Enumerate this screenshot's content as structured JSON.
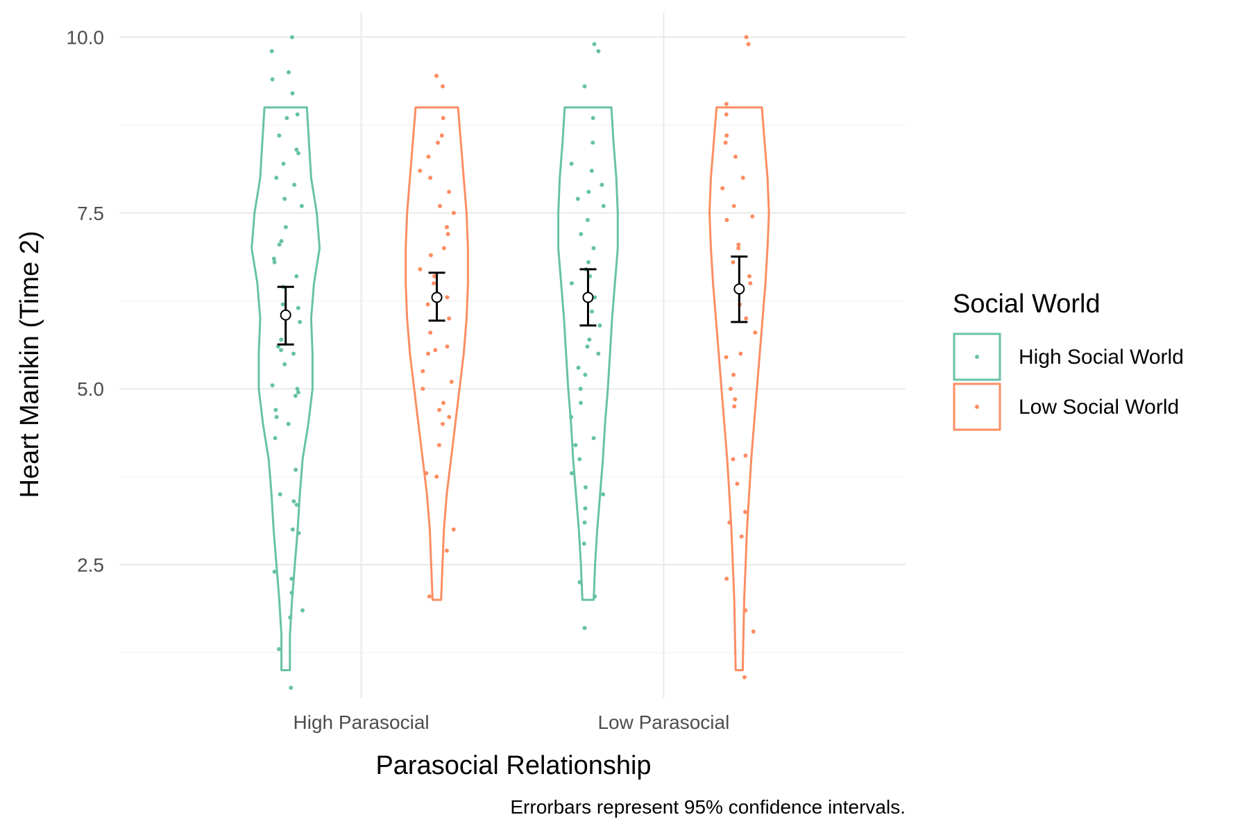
{
  "chart_data": {
    "type": "violin",
    "caption": "Errorbars represent 95% confidence intervals.",
    "xlabel": "Parasocial Relationship",
    "ylabel": "Heart Manikin (Time 2)",
    "categories": [
      "High Parasocial",
      "Low Parasocial"
    ],
    "ylim": [
      0.6,
      10.35
    ],
    "yticks": [
      2.5,
      5.0,
      7.5,
      10.0
    ],
    "ytick_labels": [
      "2.5",
      "5.0",
      "7.5",
      "10.0"
    ],
    "grid": true,
    "legend": {
      "title": "Social World",
      "placement": "right",
      "entries": [
        "High Social World",
        "Low Social World"
      ]
    },
    "series": [
      {
        "name": "High Social World",
        "color": "#66c2a5",
        "groups": [
          {
            "category": "High Parasocial",
            "mean": 6.05,
            "ci_low": 5.63,
            "ci_high": 6.45,
            "violin": [
              [
                1.0,
                0.06
              ],
              [
                1.5,
                0.06
              ],
              [
                2.0,
                0.09
              ],
              [
                2.5,
                0.13
              ],
              [
                3.0,
                0.17
              ],
              [
                3.5,
                0.2
              ],
              [
                4.0,
                0.24
              ],
              [
                4.5,
                0.32
              ],
              [
                5.0,
                0.38
              ],
              [
                5.5,
                0.38
              ],
              [
                6.0,
                0.36
              ],
              [
                6.5,
                0.4
              ],
              [
                7.0,
                0.48
              ],
              [
                7.5,
                0.44
              ],
              [
                8.0,
                0.36
              ],
              [
                8.5,
                0.33
              ],
              [
                9.0,
                0.3
              ]
            ],
            "points": [
              0.75,
              1.3,
              1.75,
              1.85,
              2.1,
              2.3,
              2.4,
              2.95,
              3.0,
              3.35,
              3.4,
              3.5,
              3.85,
              4.3,
              4.5,
              4.6,
              4.7,
              4.9,
              4.95,
              5.0,
              5.05,
              5.35,
              5.5,
              5.55,
              5.6,
              5.7,
              5.95,
              6.15,
              6.2,
              6.45,
              6.6,
              6.8,
              6.85,
              7.05,
              7.1,
              7.3,
              7.6,
              7.7,
              7.9,
              8.0,
              8.2,
              8.35,
              8.4,
              8.6,
              8.85,
              8.9,
              9.2,
              9.4,
              9.5,
              9.8,
              10.0
            ]
          },
          {
            "category": "Low Parasocial",
            "mean": 6.3,
            "ci_low": 5.9,
            "ci_high": 6.7,
            "violin": [
              [
                2.0,
                0.08
              ],
              [
                2.5,
                0.1
              ],
              [
                3.0,
                0.13
              ],
              [
                3.5,
                0.17
              ],
              [
                4.0,
                0.21
              ],
              [
                4.5,
                0.24
              ],
              [
                5.0,
                0.28
              ],
              [
                5.5,
                0.31
              ],
              [
                6.0,
                0.34
              ],
              [
                6.5,
                0.38
              ],
              [
                7.0,
                0.42
              ],
              [
                7.5,
                0.42
              ],
              [
                8.0,
                0.4
              ],
              [
                8.5,
                0.36
              ],
              [
                9.0,
                0.33
              ]
            ],
            "points": [
              1.6,
              2.05,
              2.25,
              2.8,
              3.1,
              3.3,
              3.5,
              3.6,
              3.8,
              4.0,
              4.2,
              4.3,
              4.6,
              4.8,
              5.0,
              5.2,
              5.3,
              5.5,
              5.6,
              5.7,
              5.9,
              6.1,
              6.3,
              6.5,
              6.6,
              6.7,
              6.8,
              7.0,
              7.2,
              7.4,
              7.6,
              7.7,
              7.8,
              7.9,
              8.1,
              8.2,
              8.5,
              8.85,
              9.3,
              9.8,
              9.9
            ]
          }
        ]
      },
      {
        "name": "Low Social World",
        "color": "#fc8d62",
        "groups": [
          {
            "category": "High Parasocial",
            "mean": 6.3,
            "ci_low": 5.97,
            "ci_high": 6.65,
            "violin": [
              [
                2.0,
                0.06
              ],
              [
                2.5,
                0.08
              ],
              [
                3.0,
                0.1
              ],
              [
                3.5,
                0.14
              ],
              [
                4.0,
                0.2
              ],
              [
                4.5,
                0.26
              ],
              [
                5.0,
                0.32
              ],
              [
                5.5,
                0.38
              ],
              [
                6.0,
                0.42
              ],
              [
                6.5,
                0.44
              ],
              [
                7.0,
                0.44
              ],
              [
                7.5,
                0.42
              ],
              [
                8.0,
                0.38
              ],
              [
                8.5,
                0.34
              ],
              [
                9.0,
                0.3
              ]
            ],
            "points": [
              2.05,
              2.7,
              3.0,
              3.75,
              3.8,
              4.2,
              4.5,
              4.6,
              4.7,
              4.8,
              5.0,
              5.1,
              5.25,
              5.5,
              5.55,
              5.6,
              5.8,
              6.0,
              6.2,
              6.3,
              6.5,
              6.6,
              6.7,
              6.9,
              7.0,
              7.2,
              7.3,
              7.5,
              7.6,
              7.8,
              8.0,
              8.1,
              8.3,
              8.5,
              8.6,
              8.85,
              9.3,
              9.45
            ]
          },
          {
            "category": "Low Parasocial",
            "mean": 6.42,
            "ci_low": 5.95,
            "ci_high": 6.88,
            "violin": [
              [
                1.0,
                0.05
              ],
              [
                1.5,
                0.06
              ],
              [
                2.0,
                0.07
              ],
              [
                2.5,
                0.09
              ],
              [
                3.0,
                0.11
              ],
              [
                3.5,
                0.14
              ],
              [
                4.0,
                0.17
              ],
              [
                4.5,
                0.21
              ],
              [
                5.0,
                0.25
              ],
              [
                5.5,
                0.29
              ],
              [
                6.0,
                0.33
              ],
              [
                6.5,
                0.37
              ],
              [
                7.0,
                0.4
              ],
              [
                7.5,
                0.42
              ],
              [
                8.0,
                0.4
              ],
              [
                8.5,
                0.36
              ],
              [
                9.0,
                0.32
              ]
            ],
            "points": [
              0.9,
              1.55,
              1.85,
              2.3,
              2.9,
              3.1,
              3.25,
              3.65,
              4.0,
              4.05,
              4.75,
              4.85,
              5.0,
              5.2,
              5.45,
              5.5,
              5.8,
              6.0,
              6.2,
              6.5,
              6.6,
              6.8,
              7.0,
              7.05,
              7.4,
              7.45,
              7.6,
              7.85,
              8.0,
              8.3,
              8.5,
              8.6,
              8.9,
              9.05,
              9.9,
              10.0
            ]
          }
        ]
      }
    ]
  }
}
